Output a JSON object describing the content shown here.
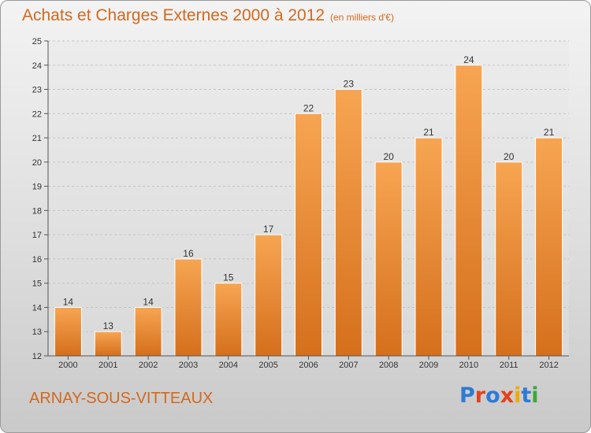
{
  "title": "Achats et Charges Externes 2000 à 2012",
  "subtitle": "(en milliers d'€)",
  "city": "ARNAY-SOUS-VITTEAUX",
  "logo": {
    "text": "Proxiti",
    "colors": [
      "#2e7bd6",
      "#e6411b",
      "#2e7bd6",
      "#e6411b",
      "#f2a900",
      "#2e7bd6",
      "#3aa935"
    ]
  },
  "colors": {
    "accent": "#d2691e",
    "bar_light": "#f7a552",
    "bar_dark": "#d8731f"
  },
  "chart_data": {
    "type": "bar",
    "categories": [
      "2000",
      "2001",
      "2002",
      "2003",
      "2004",
      "2005",
      "2006",
      "2007",
      "2008",
      "2009",
      "2010",
      "2011",
      "2012"
    ],
    "values": [
      14,
      13,
      14,
      16,
      15,
      17,
      22,
      23,
      20,
      21,
      24,
      20,
      21
    ],
    "title": "Achats et Charges Externes 2000 à 2012",
    "xlabel": "",
    "ylabel": "",
    "ylim": [
      12,
      25
    ],
    "yticks": [
      12,
      13,
      14,
      15,
      16,
      17,
      18,
      19,
      20,
      21,
      22,
      23,
      24,
      25
    ],
    "grid": true
  }
}
